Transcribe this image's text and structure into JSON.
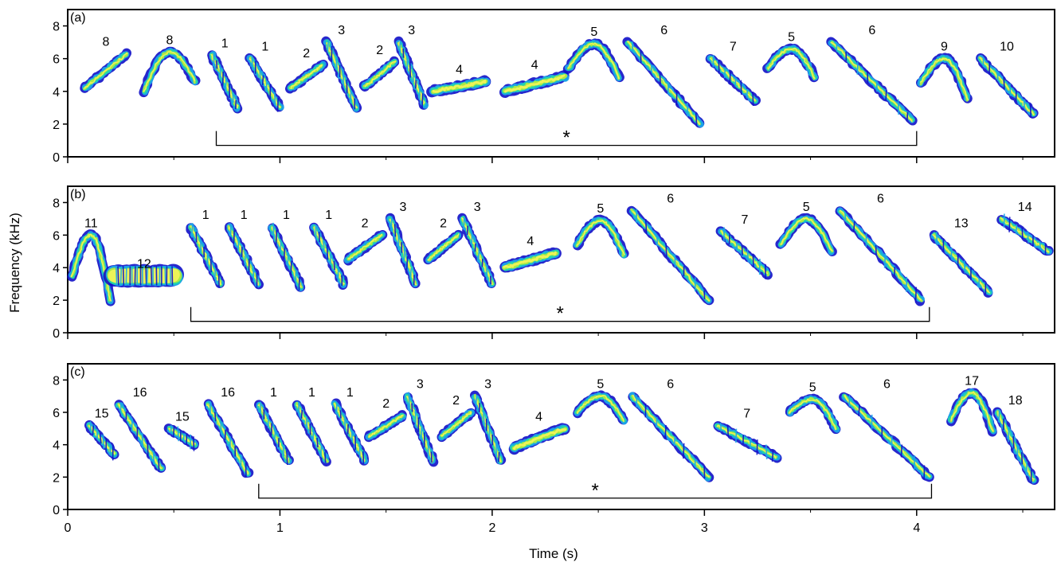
{
  "colors": {
    "frame": "#000000",
    "bracket": "#000000",
    "spectrogram_palette": [
      "#1010c8",
      "#1aa6e8",
      "#25d6a8",
      "#b9ec3a",
      "#f4f45a"
    ]
  },
  "figure": {
    "xlabel": "Time (s)",
    "ylabel": "Frequency (kHz)"
  },
  "chart_data": [
    {
      "type": "spectrogram",
      "panel_label": "(a)",
      "xlim": [
        0,
        4.65
      ],
      "ylim": [
        0,
        9
      ],
      "yticks": [
        0,
        2,
        4,
        6,
        8
      ],
      "xticks": [
        0,
        1,
        2,
        3,
        4
      ],
      "xticklabels_visible": false,
      "bracket": {
        "start": 0.7,
        "end": 4.0,
        "label": "*"
      },
      "syllables": [
        {
          "label": "8",
          "t0": 0.08,
          "t1": 0.28,
          "f_start": 4.2,
          "f_end": 6.3,
          "shape": "rise"
        },
        {
          "label": "8",
          "t0": 0.36,
          "t1": 0.6,
          "f_start": 4.0,
          "f_end": 4.6,
          "f_peak": 6.4,
          "shape": "arch"
        },
        {
          "label": "1",
          "t0": 0.68,
          "t1": 0.8,
          "f_start": 6.2,
          "f_end": 3.0,
          "shape": "fall"
        },
        {
          "label": "1",
          "t0": 0.86,
          "t1": 1.0,
          "f_start": 6.0,
          "f_end": 3.0,
          "shape": "fall"
        },
        {
          "label": "2",
          "t0": 1.05,
          "t1": 1.2,
          "f_start": 4.2,
          "f_end": 5.6,
          "shape": "rise"
        },
        {
          "label": "3",
          "t0": 1.22,
          "t1": 1.36,
          "f_start": 7.0,
          "f_end": 3.0,
          "shape": "fall"
        },
        {
          "label": "2",
          "t0": 1.4,
          "t1": 1.54,
          "f_start": 4.3,
          "f_end": 5.8,
          "shape": "rise"
        },
        {
          "label": "3",
          "t0": 1.56,
          "t1": 1.68,
          "f_start": 7.0,
          "f_end": 3.2,
          "shape": "fall"
        },
        {
          "label": "4",
          "t0": 1.72,
          "t1": 1.97,
          "f_start": 4.0,
          "f_end": 4.6,
          "shape": "rise"
        },
        {
          "label": "4",
          "t0": 2.06,
          "t1": 2.34,
          "f_start": 4.0,
          "f_end": 4.9,
          "shape": "rise"
        },
        {
          "label": "5",
          "t0": 2.36,
          "t1": 2.6,
          "f_start": 5.4,
          "f_end": 4.8,
          "f_peak": 6.9,
          "shape": "arch"
        },
        {
          "label": "6",
          "t0": 2.64,
          "t1": 2.98,
          "f_start": 7.0,
          "f_end": 2.0,
          "shape": "fall"
        },
        {
          "label": "7",
          "t0": 3.03,
          "t1": 3.24,
          "f_start": 6.0,
          "f_end": 3.4,
          "shape": "fall"
        },
        {
          "label": "5",
          "t0": 3.3,
          "t1": 3.52,
          "f_start": 5.4,
          "f_end": 4.8,
          "f_peak": 6.6,
          "shape": "arch"
        },
        {
          "label": "6",
          "t0": 3.6,
          "t1": 3.98,
          "f_start": 7.0,
          "f_end": 2.2,
          "shape": "fall"
        },
        {
          "label": "9",
          "t0": 4.02,
          "t1": 4.24,
          "f_start": 4.5,
          "f_end": 3.5,
          "f_peak": 6.0,
          "shape": "arch"
        },
        {
          "label": "10",
          "t0": 4.3,
          "t1": 4.55,
          "f_start": 6.0,
          "f_end": 2.6,
          "shape": "fall"
        }
      ]
    },
    {
      "type": "spectrogram",
      "panel_label": "(b)",
      "xlim": [
        0,
        4.65
      ],
      "ylim": [
        0,
        9
      ],
      "yticks": [
        0,
        2,
        4,
        6,
        8
      ],
      "xticks": [
        0,
        1,
        2,
        3,
        4
      ],
      "xticklabels_visible": false,
      "bracket": {
        "start": 0.58,
        "end": 4.06,
        "label": "*"
      },
      "syllables": [
        {
          "label": "11",
          "t0": 0.02,
          "t1": 0.2,
          "f_start": 3.5,
          "f_end": 2.0,
          "f_peak": 6.0,
          "shape": "arch"
        },
        {
          "label": "12",
          "t0": 0.22,
          "t1": 0.5,
          "f_start": 3.5,
          "f_end": 3.5,
          "shape": "noise"
        },
        {
          "label": "1",
          "t0": 0.58,
          "t1": 0.72,
          "f_start": 6.5,
          "f_end": 3.0,
          "shape": "fall"
        },
        {
          "label": "1",
          "t0": 0.76,
          "t1": 0.9,
          "f_start": 6.5,
          "f_end": 3.0,
          "shape": "fall"
        },
        {
          "label": "1",
          "t0": 0.96,
          "t1": 1.1,
          "f_start": 6.5,
          "f_end": 2.8,
          "shape": "fall"
        },
        {
          "label": "1",
          "t0": 1.16,
          "t1": 1.3,
          "f_start": 6.5,
          "f_end": 3.0,
          "shape": "fall"
        },
        {
          "label": "2",
          "t0": 1.32,
          "t1": 1.48,
          "f_start": 4.5,
          "f_end": 6.0,
          "shape": "rise"
        },
        {
          "label": "3",
          "t0": 1.52,
          "t1": 1.64,
          "f_start": 7.0,
          "f_end": 3.0,
          "shape": "fall"
        },
        {
          "label": "2",
          "t0": 1.7,
          "t1": 1.84,
          "f_start": 4.5,
          "f_end": 6.0,
          "shape": "rise"
        },
        {
          "label": "3",
          "t0": 1.86,
          "t1": 2.0,
          "f_start": 7.0,
          "f_end": 3.0,
          "shape": "fall"
        },
        {
          "label": "4",
          "t0": 2.06,
          "t1": 2.3,
          "f_start": 4.0,
          "f_end": 4.9,
          "shape": "rise"
        },
        {
          "label": "5",
          "t0": 2.4,
          "t1": 2.62,
          "f_start": 5.4,
          "f_end": 4.8,
          "f_peak": 6.9,
          "shape": "arch"
        },
        {
          "label": "6",
          "t0": 2.66,
          "t1": 3.02,
          "f_start": 7.5,
          "f_end": 2.0,
          "shape": "fall"
        },
        {
          "label": "7",
          "t0": 3.08,
          "t1": 3.3,
          "f_start": 6.2,
          "f_end": 3.6,
          "shape": "fall"
        },
        {
          "label": "5",
          "t0": 3.36,
          "t1": 3.6,
          "f_start": 5.4,
          "f_end": 5.0,
          "f_peak": 7.0,
          "shape": "arch"
        },
        {
          "label": "6",
          "t0": 3.64,
          "t1": 4.02,
          "f_start": 7.5,
          "f_end": 2.0,
          "shape": "fall"
        },
        {
          "label": "13",
          "t0": 4.08,
          "t1": 4.34,
          "f_start": 6.0,
          "f_end": 2.5,
          "shape": "fall"
        },
        {
          "label": "14",
          "t0": 4.4,
          "t1": 4.62,
          "f_start": 7.0,
          "f_end": 5.0,
          "shape": "fall"
        }
      ]
    },
    {
      "type": "spectrogram",
      "panel_label": "(c)",
      "xlim": [
        0,
        4.65
      ],
      "ylim": [
        0,
        9
      ],
      "yticks": [
        0,
        2,
        4,
        6,
        8
      ],
      "xticks": [
        0,
        1,
        2,
        3,
        4
      ],
      "xticklabels_visible": true,
      "bracket": {
        "start": 0.9,
        "end": 4.07,
        "label": "*"
      },
      "syllables": [
        {
          "label": "15",
          "t0": 0.1,
          "t1": 0.22,
          "f_start": 5.2,
          "f_end": 3.4,
          "shape": "fall"
        },
        {
          "label": "16",
          "t0": 0.24,
          "t1": 0.44,
          "f_start": 6.5,
          "f_end": 2.5,
          "shape": "fall"
        },
        {
          "label": "15",
          "t0": 0.48,
          "t1": 0.6,
          "f_start": 5.0,
          "f_end": 4.0,
          "shape": "fall"
        },
        {
          "label": "16",
          "t0": 0.66,
          "t1": 0.85,
          "f_start": 6.5,
          "f_end": 2.2,
          "shape": "fall"
        },
        {
          "label": "1",
          "t0": 0.9,
          "t1": 1.04,
          "f_start": 6.5,
          "f_end": 3.0,
          "shape": "fall"
        },
        {
          "label": "1",
          "t0": 1.08,
          "t1": 1.22,
          "f_start": 6.5,
          "f_end": 3.0,
          "shape": "fall"
        },
        {
          "label": "1",
          "t0": 1.26,
          "t1": 1.4,
          "f_start": 6.5,
          "f_end": 3.0,
          "shape": "fall"
        },
        {
          "label": "2",
          "t0": 1.42,
          "t1": 1.58,
          "f_start": 4.5,
          "f_end": 5.8,
          "shape": "rise"
        },
        {
          "label": "3",
          "t0": 1.6,
          "t1": 1.72,
          "f_start": 7.0,
          "f_end": 3.0,
          "shape": "fall"
        },
        {
          "label": "2",
          "t0": 1.76,
          "t1": 1.9,
          "f_start": 4.5,
          "f_end": 6.0,
          "shape": "rise"
        },
        {
          "label": "3",
          "t0": 1.92,
          "t1": 2.04,
          "f_start": 7.0,
          "f_end": 3.0,
          "shape": "fall"
        },
        {
          "label": "4",
          "t0": 2.1,
          "t1": 2.34,
          "f_start": 3.8,
          "f_end": 5.0,
          "shape": "rise"
        },
        {
          "label": "5",
          "t0": 2.4,
          "t1": 2.62,
          "f_start": 6.0,
          "f_end": 5.5,
          "f_peak": 7.0,
          "shape": "arch"
        },
        {
          "label": "6",
          "t0": 2.66,
          "t1": 3.02,
          "f_start": 7.0,
          "f_end": 2.0,
          "shape": "fall"
        },
        {
          "label": "7",
          "t0": 3.06,
          "t1": 3.34,
          "f_start": 5.2,
          "f_end": 3.2,
          "shape": "fall"
        },
        {
          "label": "5",
          "t0": 3.4,
          "t1": 3.62,
          "f_start": 6.0,
          "f_end": 5.0,
          "f_peak": 6.8,
          "shape": "arch"
        },
        {
          "label": "6",
          "t0": 3.66,
          "t1": 4.06,
          "f_start": 7.0,
          "f_end": 2.0,
          "shape": "fall"
        },
        {
          "label": "17",
          "t0": 4.16,
          "t1": 4.36,
          "f_start": 5.5,
          "f_end": 4.8,
          "f_peak": 7.2,
          "shape": "arch"
        },
        {
          "label": "18",
          "t0": 4.38,
          "t1": 4.55,
          "f_start": 6.0,
          "f_end": 1.8,
          "shape": "fall"
        }
      ]
    }
  ]
}
